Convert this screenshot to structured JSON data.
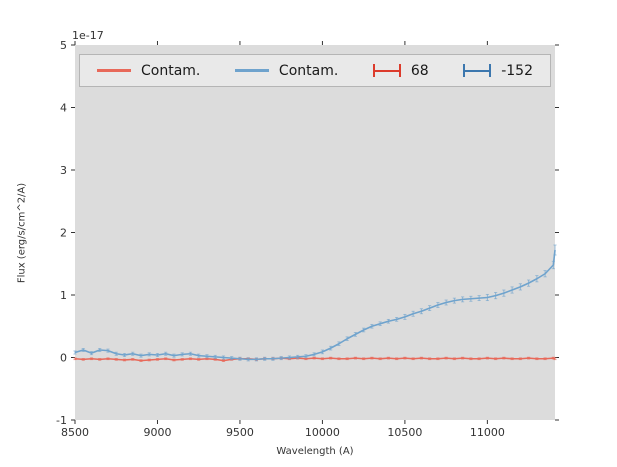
{
  "figure": {
    "offset_text": "1e-17",
    "xlabel": "Wavelength (A)",
    "ylabel": "Flux (erg/s/cm^2/A)"
  },
  "legend": {
    "position": "top-inside",
    "items": [
      {
        "label": "Contam.",
        "type": "line",
        "color": "#e8695a"
      },
      {
        "label": "Contam.",
        "type": "line",
        "color": "#6fa3cd"
      },
      {
        "label": "68",
        "type": "errorbar",
        "color": "#dc3b2c"
      },
      {
        "label": "-152",
        "type": "errorbar",
        "color": "#3c77ae"
      }
    ]
  },
  "chart_data": {
    "type": "line",
    "title": "",
    "xlabel": "Wavelength (A)",
    "ylabel": "Flux (erg/s/cm^2/A)",
    "y_offset_factor": "1e-17",
    "xlim": [
      8500,
      11410
    ],
    "ylim": [
      -1,
      5
    ],
    "xticks": [
      8500,
      9000,
      9500,
      10000,
      10500,
      11000
    ],
    "yticks": [
      -1,
      0,
      1,
      2,
      3,
      4,
      5
    ],
    "grid": false,
    "legend_position": "top",
    "x": [
      8500,
      8550,
      8600,
      8650,
      8700,
      8750,
      8800,
      8850,
      8900,
      8950,
      9000,
      9050,
      9100,
      9150,
      9200,
      9250,
      9300,
      9350,
      9400,
      9450,
      9500,
      9550,
      9600,
      9650,
      9700,
      9750,
      9800,
      9850,
      9900,
      9950,
      10000,
      10050,
      10100,
      10150,
      10200,
      10250,
      10300,
      10350,
      10400,
      10450,
      10500,
      10550,
      10600,
      10650,
      10700,
      10750,
      10800,
      10850,
      10900,
      10950,
      11000,
      11050,
      11100,
      11150,
      11200,
      11250,
      11300,
      11350,
      11400,
      11410
    ],
    "series": [
      {
        "name": "Contam.",
        "color": "#e8695a",
        "err_color": "#dc3b2c",
        "err": 0.015,
        "values": [
          -0.02,
          -0.03,
          -0.02,
          -0.03,
          -0.02,
          -0.03,
          -0.04,
          -0.03,
          -0.05,
          -0.04,
          -0.03,
          -0.02,
          -0.04,
          -0.03,
          -0.02,
          -0.03,
          -0.02,
          -0.03,
          -0.05,
          -0.03,
          -0.02,
          -0.02,
          -0.03,
          -0.02,
          -0.02,
          -0.01,
          -0.02,
          -0.01,
          -0.02,
          -0.01,
          -0.02,
          -0.01,
          -0.02,
          -0.02,
          -0.01,
          -0.02,
          -0.01,
          -0.02,
          -0.01,
          -0.02,
          -0.01,
          -0.02,
          -0.01,
          -0.02,
          -0.02,
          -0.01,
          -0.02,
          -0.01,
          -0.02,
          -0.02,
          -0.01,
          -0.02,
          -0.01,
          -0.02,
          -0.02,
          -0.01,
          -0.02,
          -0.02,
          -0.01,
          -0.02
        ]
      },
      {
        "name": "Contam.",
        "color": "#6fa3cd",
        "err_color": "#3c77ae",
        "err": [
          0.025,
          0.025,
          0.025,
          0.025,
          0.025,
          0.025,
          0.025,
          0.025,
          0.025,
          0.025,
          0.025,
          0.025,
          0.025,
          0.025,
          0.025,
          0.025,
          0.025,
          0.025,
          0.025,
          0.025,
          0.025,
          0.025,
          0.025,
          0.025,
          0.025,
          0.025,
          0.025,
          0.025,
          0.025,
          0.025,
          0.03,
          0.03,
          0.03,
          0.03,
          0.03,
          0.03,
          0.03,
          0.03,
          0.03,
          0.03,
          0.04,
          0.04,
          0.04,
          0.04,
          0.04,
          0.04,
          0.04,
          0.04,
          0.04,
          0.04,
          0.05,
          0.05,
          0.05,
          0.05,
          0.05,
          0.05,
          0.05,
          0.05,
          0.06,
          0.08
        ],
        "values": [
          0.08,
          0.12,
          0.07,
          0.12,
          0.11,
          0.06,
          0.04,
          0.06,
          0.03,
          0.05,
          0.04,
          0.06,
          0.03,
          0.05,
          0.06,
          0.03,
          0.02,
          0.01,
          0.0,
          -0.01,
          -0.02,
          -0.03,
          -0.03,
          -0.02,
          -0.02,
          -0.01,
          0.0,
          0.01,
          0.02,
          0.05,
          0.09,
          0.15,
          0.22,
          0.3,
          0.37,
          0.44,
          0.5,
          0.54,
          0.58,
          0.61,
          0.65,
          0.7,
          0.74,
          0.79,
          0.84,
          0.88,
          0.91,
          0.93,
          0.94,
          0.95,
          0.96,
          0.99,
          1.03,
          1.08,
          1.13,
          1.19,
          1.26,
          1.34,
          1.48,
          1.72
        ]
      }
    ],
    "colors": {
      "plot_bg": "#dcdcdc",
      "figure_bg": "#ffffff",
      "tick": "#333333",
      "text": "#333333",
      "legend_bg": "#e9e9e9",
      "legend_border": "#b5b5b5"
    }
  }
}
